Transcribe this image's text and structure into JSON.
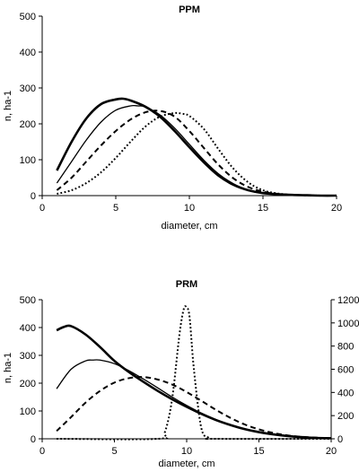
{
  "chart_data": [
    {
      "type": "line",
      "title": "PPM",
      "xlabel": "diameter, cm",
      "ylabel": "n, ha-1",
      "xlim": [
        0,
        20
      ],
      "ylim": [
        0,
        500
      ],
      "xticks": [
        "0",
        "5",
        "10",
        "15",
        "20"
      ],
      "yticks": [
        "0",
        "100",
        "200",
        "300",
        "400",
        "500"
      ],
      "grid": false,
      "legend": "none",
      "series": [
        {
          "style": "thick-solid",
          "x": [
            1,
            2,
            3,
            4,
            5,
            5.5,
            6,
            7,
            8,
            9,
            10,
            11,
            12,
            13,
            14,
            15,
            16,
            17,
            18,
            19,
            20
          ],
          "values": [
            70,
            150,
            215,
            255,
            268,
            270,
            265,
            248,
            220,
            180,
            135,
            92,
            55,
            30,
            15,
            7,
            4,
            2,
            1,
            0,
            0
          ]
        },
        {
          "style": "thin-solid",
          "x": [
            1,
            2,
            3,
            4,
            5,
            6,
            6.5,
            7,
            8,
            9,
            10,
            11,
            12,
            13,
            14,
            15,
            16,
            17,
            18,
            19,
            20
          ],
          "values": [
            35,
            95,
            155,
            205,
            238,
            250,
            250,
            247,
            225,
            188,
            143,
            98,
            60,
            33,
            16,
            8,
            4,
            2,
            1,
            0,
            0
          ]
        },
        {
          "style": "dashed",
          "x": [
            1,
            2,
            3,
            4,
            5,
            6,
            7,
            8,
            9,
            10,
            11,
            12,
            13,
            14,
            15,
            16,
            17,
            18,
            19,
            20
          ],
          "values": [
            15,
            50,
            95,
            140,
            180,
            212,
            232,
            236,
            220,
            180,
            132,
            85,
            48,
            24,
            11,
            5,
            2,
            1,
            0,
            0
          ]
        },
        {
          "style": "dotted",
          "x": [
            1,
            2,
            3,
            4,
            5,
            6,
            7,
            8,
            9,
            9.5,
            10,
            11,
            12,
            13,
            14,
            15,
            16,
            17,
            18,
            19,
            20
          ],
          "values": [
            5,
            15,
            35,
            65,
            105,
            150,
            192,
            220,
            230,
            228,
            222,
            185,
            128,
            75,
            37,
            15,
            6,
            2,
            1,
            0,
            0
          ]
        }
      ]
    },
    {
      "type": "line",
      "title": "PRM",
      "xlabel": "diameter, cm",
      "ylabel": "n, ha-1",
      "xlim": [
        0,
        20
      ],
      "ylim": [
        0,
        500
      ],
      "y2lim": [
        0,
        1200
      ],
      "xticks": [
        "0",
        "5",
        "10",
        "15",
        "20"
      ],
      "yticks": [
        "0",
        "100",
        "200",
        "300",
        "400",
        "500"
      ],
      "y2ticks": [
        "0",
        "200",
        "400",
        "600",
        "800",
        "1000",
        "1200"
      ],
      "grid": false,
      "legend": "none",
      "series": [
        {
          "style": "thick-solid",
          "axis": "left",
          "x": [
            1,
            1.5,
            2,
            3,
            4,
            5,
            6,
            7,
            8,
            9,
            10,
            11,
            12,
            13,
            14,
            15,
            16,
            17,
            18,
            19,
            20
          ],
          "values": [
            390,
            402,
            405,
            375,
            330,
            280,
            240,
            205,
            172,
            142,
            115,
            90,
            68,
            50,
            35,
            24,
            16,
            10,
            6,
            3,
            2
          ]
        },
        {
          "style": "thin-solid",
          "axis": "left",
          "x": [
            1,
            2,
            3,
            3.5,
            4,
            5,
            6,
            7,
            8,
            9,
            10,
            11,
            12,
            13,
            14,
            15,
            16,
            17,
            18,
            19,
            20
          ],
          "values": [
            180,
            250,
            280,
            283,
            283,
            270,
            245,
            215,
            183,
            150,
            120,
            93,
            70,
            51,
            36,
            25,
            16,
            10,
            6,
            3,
            2
          ]
        },
        {
          "style": "dashed",
          "axis": "left",
          "x": [
            1,
            2,
            3,
            4,
            5,
            6,
            7,
            8,
            9,
            10,
            11,
            12,
            13,
            14,
            15,
            16,
            17,
            18,
            19,
            20
          ],
          "values": [
            28,
            78,
            130,
            172,
            202,
            218,
            222,
            213,
            195,
            168,
            137,
            105,
            76,
            52,
            34,
            21,
            12,
            7,
            4,
            2
          ]
        },
        {
          "style": "dotted",
          "axis": "right",
          "x": [
            1,
            8,
            8.5,
            9,
            9.5,
            9.8,
            10,
            10.2,
            10.5,
            11,
            11.5,
            12,
            20
          ],
          "values": [
            0,
            0,
            60,
            350,
            900,
            1120,
            1130,
            1050,
            600,
            100,
            10,
            0,
            0
          ]
        }
      ]
    }
  ]
}
